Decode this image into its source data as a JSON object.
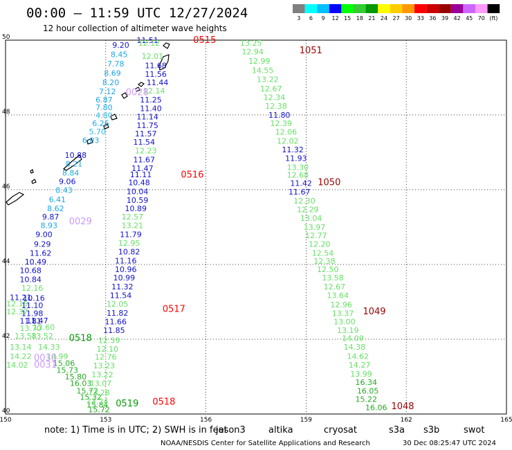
{
  "header": {
    "title": "00:00 – 11:59 UTC 12/27/2024",
    "subtitle": "12 hour collection of altimeter wave heights"
  },
  "legend": {
    "labels": [
      "3",
      "6",
      "9",
      "12",
      "15",
      "18",
      "21",
      "24",
      "27",
      "30",
      "33",
      "36",
      "39",
      "42",
      "45",
      "70",
      "(ft)"
    ],
    "colors": [
      "#808080",
      "#00ffff",
      "#00bfff",
      "#0000ff",
      "#00ff00",
      "#33cc33",
      "#009900",
      "#ffff00",
      "#ffcc00",
      "#ff9900",
      "#ff0000",
      "#cc0000",
      "#990000",
      "#990099",
      "#cc66ff",
      "#ff99ff",
      "#000000"
    ]
  },
  "notes": {
    "note_text": "note:  1) Time is in UTC; 2) SWH is in feet",
    "satellites": [
      {
        "name": "jason3",
        "color": "#009900"
      },
      {
        "name": "altika",
        "color": "#ff9900"
      },
      {
        "name": "cryosat",
        "color": "#ff0000"
      },
      {
        "name": "s3a",
        "color": "#990000"
      },
      {
        "name": "s3b",
        "color": "#cc99ff"
      },
      {
        "name": "swot",
        "color": "#ff99ff"
      }
    ],
    "credit": "NOAA/NESDIS Center for Satellite Applications and Research",
    "timestamp": "30 Dec 08:25:47 UTC 2024"
  },
  "chart_data": {
    "type": "scatter",
    "xlim": [
      150,
      165
    ],
    "ylim": [
      40,
      50
    ],
    "x_ticks": [
      150,
      153,
      156,
      159,
      162,
      165
    ],
    "y_ticks": [
      40,
      42,
      44,
      46,
      48,
      50
    ],
    "grid": true,
    "grid_lines_x": [
      153,
      156,
      159,
      162
    ],
    "grid_lines_y": [
      42,
      44,
      46,
      48
    ],
    "pass_labels": [
      {
        "text": "0515",
        "lon": 155.62,
        "lat": 49.93,
        "color": "#ff0000"
      },
      {
        "text": "1051",
        "lon": 158.8,
        "lat": 49.65,
        "color": "#990000"
      },
      {
        "text": "0028",
        "lon": 153.6,
        "lat": 48.53,
        "color": "#cc99ff"
      },
      {
        "text": "0516",
        "lon": 155.25,
        "lat": 46.32,
        "color": "#ff0000"
      },
      {
        "text": "1050",
        "lon": 159.35,
        "lat": 46.12,
        "color": "#990000"
      },
      {
        "text": "0029",
        "lon": 151.9,
        "lat": 45.07,
        "color": "#cc99ff"
      },
      {
        "text": "0517",
        "lon": 154.7,
        "lat": 42.73,
        "color": "#ff0000"
      },
      {
        "text": "1049",
        "lon": 160.7,
        "lat": 42.67,
        "color": "#990000"
      },
      {
        "text": "0518",
        "lon": 151.9,
        "lat": 41.95,
        "color": "#009900"
      },
      {
        "text": "0030",
        "lon": 150.85,
        "lat": 41.43,
        "color": "#cc99ff"
      },
      {
        "text": "0031",
        "lon": 150.85,
        "lat": 41.24,
        "color": "#cc99ff"
      },
      {
        "text": "0519",
        "lon": 153.3,
        "lat": 40.2,
        "color": "#009900"
      },
      {
        "text": "0518",
        "lon": 154.4,
        "lat": 40.25,
        "color": "#ff0000"
      },
      {
        "text": "1048",
        "lon": 161.55,
        "lat": 40.13,
        "color": "#990000"
      }
    ],
    "series": [
      {
        "points": [
          [
            153.45,
            49.8,
            9.2
          ],
          [
            153.4,
            49.55,
            8.45
          ],
          [
            153.3,
            49.3,
            7.78
          ],
          [
            153.2,
            49.05,
            8.69
          ],
          [
            153.15,
            48.8,
            8.2
          ],
          [
            153.05,
            48.56,
            7.12
          ],
          [
            152.95,
            48.33,
            6.87
          ],
          [
            152.95,
            48.13,
            7.8
          ],
          [
            152.95,
            47.92,
            4.8
          ],
          [
            152.85,
            47.7,
            6.26
          ],
          [
            152.75,
            47.48,
            5.7
          ],
          [
            152.55,
            47.25,
            6.03
          ],
          [
            152.1,
            46.85,
            10.88
          ],
          [
            152.05,
            46.62,
            8.21
          ],
          [
            151.95,
            46.38,
            8.84
          ],
          [
            151.85,
            46.15,
            9.06
          ],
          [
            151.75,
            45.92,
            8.43
          ],
          [
            151.55,
            45.67,
            6.41
          ],
          [
            151.5,
            45.43,
            8.62
          ],
          [
            151.35,
            45.2,
            9.87
          ],
          [
            151.3,
            44.97,
            8.93
          ],
          [
            151.15,
            44.73,
            9.0
          ],
          [
            151.1,
            44.47,
            9.29
          ],
          [
            151.05,
            44.23,
            11.62
          ],
          [
            150.9,
            44.0,
            10.49
          ],
          [
            150.75,
            43.77,
            10.68
          ],
          [
            150.75,
            43.53,
            10.84
          ],
          [
            150.8,
            43.3,
            12.16
          ],
          [
            150.45,
            43.05,
            11.21
          ],
          [
            150.85,
            43.03,
            10.16
          ],
          [
            150.35,
            42.88,
            12.15
          ],
          [
            150.8,
            42.83,
            11.1
          ],
          [
            150.35,
            42.67,
            12.37
          ],
          [
            150.8,
            42.62,
            11.98
          ],
          [
            150.95,
            42.43,
            11.47
          ],
          [
            150.75,
            42.42,
            11.81
          ],
          [
            150.75,
            42.22,
            13.7
          ],
          [
            151.15,
            42.25,
            13.6
          ],
          [
            150.6,
            42.02,
            13.58
          ],
          [
            151.1,
            42.02,
            13.52
          ],
          [
            150.45,
            41.72,
            13.14
          ],
          [
            151.3,
            41.72,
            14.33
          ],
          [
            150.45,
            41.47,
            14.22
          ],
          [
            151.55,
            41.47,
            14.99
          ],
          [
            150.35,
            41.24,
            14.02
          ],
          [
            151.75,
            41.29,
            15.06
          ],
          [
            151.85,
            41.1,
            15.73
          ],
          [
            152.1,
            40.93,
            15.8
          ],
          [
            152.25,
            40.75,
            16.03
          ],
          [
            152.45,
            40.55,
            15.72
          ],
          [
            152.55,
            40.38,
            15.32
          ],
          [
            152.75,
            40.18,
            15.84
          ],
          [
            152.8,
            40.05,
            15.72
          ]
        ]
      },
      {
        "points": [
          [
            154.25,
            49.93,
            11.51
          ],
          [
            154.3,
            49.85,
            12.12
          ],
          [
            154.4,
            49.5,
            12.01
          ],
          [
            154.5,
            49.25,
            11.68
          ],
          [
            154.5,
            49.02,
            11.56
          ],
          [
            154.55,
            48.8,
            11.44
          ],
          [
            154.45,
            48.57,
            12.14
          ],
          [
            154.35,
            48.33,
            11.25
          ],
          [
            154.35,
            48.1,
            11.4
          ],
          [
            154.25,
            47.88,
            11.14
          ],
          [
            154.25,
            47.65,
            11.75
          ],
          [
            154.2,
            47.43,
            11.57
          ],
          [
            154.15,
            47.2,
            11.54
          ],
          [
            154.2,
            46.97,
            12.23
          ],
          [
            154.15,
            46.73,
            11.67
          ],
          [
            154.1,
            46.5,
            11.47
          ],
          [
            154.05,
            46.33,
            11.11
          ],
          [
            154.0,
            46.12,
            10.48
          ],
          [
            153.95,
            45.88,
            10.04
          ],
          [
            153.95,
            45.65,
            10.59
          ],
          [
            153.9,
            45.43,
            10.89
          ],
          [
            153.8,
            45.2,
            12.57
          ],
          [
            153.8,
            44.97,
            13.21
          ],
          [
            153.75,
            44.73,
            11.79
          ],
          [
            153.7,
            44.5,
            12.95
          ],
          [
            153.7,
            44.27,
            10.82
          ],
          [
            153.6,
            44.03,
            11.16
          ],
          [
            153.6,
            43.8,
            10.96
          ],
          [
            153.55,
            43.57,
            10.99
          ],
          [
            153.5,
            43.33,
            11.32
          ],
          [
            153.45,
            43.1,
            11.54
          ],
          [
            153.35,
            42.87,
            12.05
          ],
          [
            153.35,
            42.63,
            11.82
          ],
          [
            153.3,
            42.4,
            11.66
          ],
          [
            153.25,
            42.17,
            11.85
          ],
          [
            153.1,
            41.9,
            12.59
          ],
          [
            153.05,
            41.67,
            12.1
          ],
          [
            153.0,
            41.45,
            12.76
          ],
          [
            152.95,
            41.22,
            13.23
          ],
          [
            152.9,
            40.98,
            13.22
          ],
          [
            152.85,
            40.75,
            13.07
          ],
          [
            152.8,
            40.5,
            13.28
          ],
          [
            152.75,
            40.27,
            13.24
          ]
        ]
      },
      {
        "points": [
          [
            157.35,
            49.85,
            13.25
          ],
          [
            157.4,
            49.62,
            12.94
          ],
          [
            157.6,
            49.37,
            12.99
          ],
          [
            157.7,
            49.12,
            14.55
          ],
          [
            157.85,
            48.88,
            13.22
          ],
          [
            157.95,
            48.63,
            12.67
          ],
          [
            158.05,
            48.4,
            12.34
          ],
          [
            158.1,
            48.17,
            12.38
          ],
          [
            158.2,
            47.93,
            11.8
          ],
          [
            158.25,
            47.7,
            12.39
          ],
          [
            158.4,
            47.47,
            12.06
          ],
          [
            158.45,
            47.23,
            12.02
          ],
          [
            158.6,
            47.0,
            11.32
          ],
          [
            158.7,
            46.77,
            11.93
          ],
          [
            158.75,
            46.53,
            13.3
          ],
          [
            158.75,
            46.32,
            12.68
          ],
          [
            158.85,
            46.1,
            11.42
          ],
          [
            158.8,
            45.87,
            11.67
          ],
          [
            158.95,
            45.63,
            12.3
          ],
          [
            159.05,
            45.4,
            12.29
          ],
          [
            159.15,
            45.17,
            13.04
          ],
          [
            159.25,
            44.93,
            13.97
          ],
          [
            159.3,
            44.7,
            12.77
          ],
          [
            159.4,
            44.47,
            12.2
          ],
          [
            159.5,
            44.23,
            12.54
          ],
          [
            159.55,
            44.02,
            12.38
          ],
          [
            159.65,
            43.8,
            12.5
          ],
          [
            159.8,
            43.57,
            13.58
          ],
          [
            159.85,
            43.33,
            12.67
          ],
          [
            159.95,
            43.1,
            13.64
          ],
          [
            160.05,
            42.85,
            12.96
          ],
          [
            160.1,
            42.62,
            13.37
          ],
          [
            160.15,
            42.4,
            13.0
          ],
          [
            160.25,
            42.17,
            13.19
          ],
          [
            160.4,
            41.95,
            14.09
          ],
          [
            160.45,
            41.72,
            14.38
          ],
          [
            160.55,
            41.47,
            14.62
          ],
          [
            160.6,
            41.24,
            14.27
          ],
          [
            160.65,
            41.0,
            13.99
          ],
          [
            160.8,
            40.78,
            16.34
          ],
          [
            160.85,
            40.55,
            16.05
          ],
          [
            160.8,
            40.32,
            15.22
          ],
          [
            161.1,
            40.1,
            16.06
          ]
        ]
      }
    ]
  }
}
